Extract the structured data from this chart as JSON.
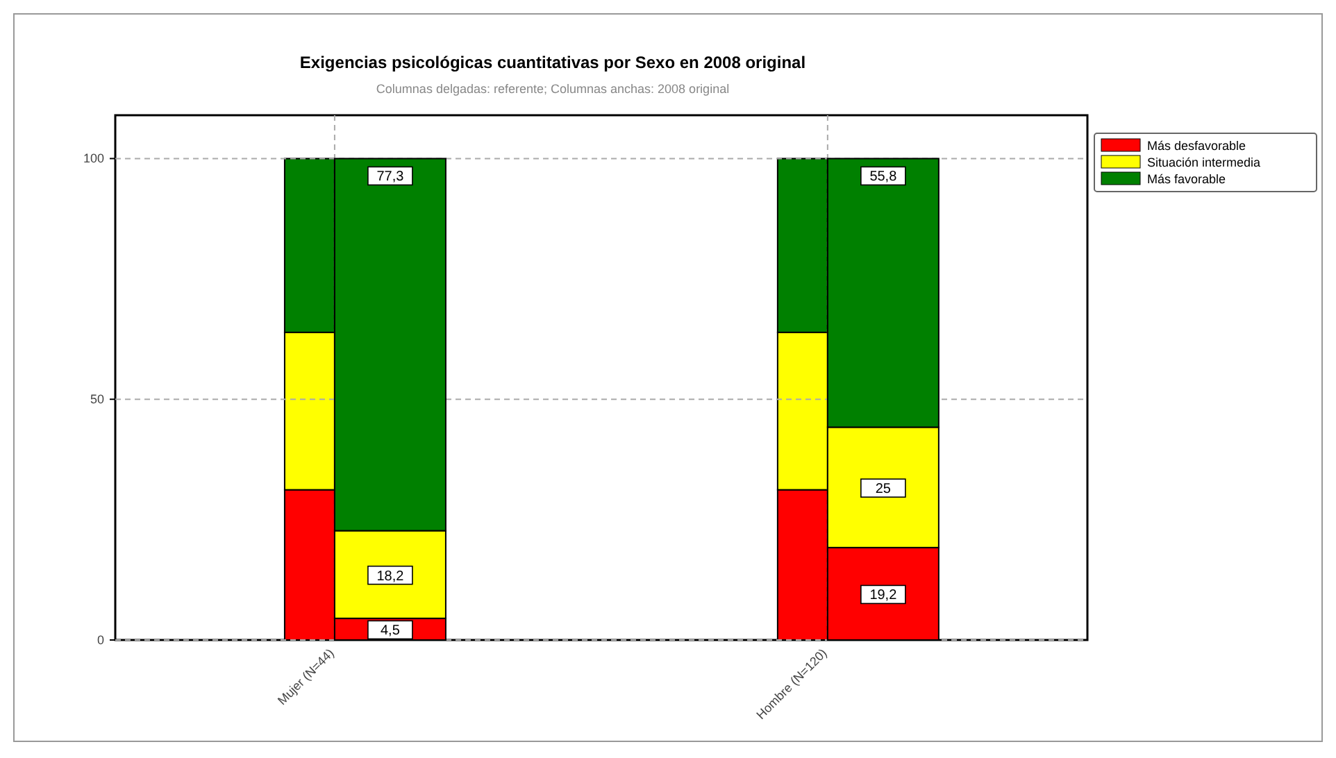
{
  "chart_data": [
    {
      "type": "bar",
      "title": "Exigencias psicológicas cuantitativas por Sexo en 2008 original",
      "subtitle": "Columnas delgadas: referente; Columnas anchas: 2008 original",
      "categories": [
        "Mujer (N=44)",
        "Hombre (N=120)"
      ],
      "stacked": true,
      "series": [
        {
          "name": "Más desfavorable",
          "color": "#ff0000",
          "values": [
            4.5,
            19.2
          ],
          "value_labels": [
            "4,5",
            "19,2"
          ]
        },
        {
          "name": "Situación intermedia",
          "color": "#ffff00",
          "values": [
            18.2,
            25
          ],
          "value_labels": [
            "18,2",
            "25"
          ]
        },
        {
          "name": "Más favorable",
          "color": "#008000",
          "values": [
            77.3,
            55.8
          ],
          "value_labels": [
            "77,3",
            "55,8"
          ]
        }
      ],
      "ylim": [
        0,
        109
      ],
      "yticks": [
        0,
        50,
        100
      ],
      "grid": true,
      "legend": "top right"
    },
    {
      "type": "bar",
      "categories": [
        null,
        null
      ],
      "stacked": true,
      "series": [
        {
          "color": "#ff0000",
          "values": [
            31.2,
            31.2
          ]
        },
        {
          "color": "#ffff00",
          "values": [
            32.7,
            32.7
          ]
        },
        {
          "color": "#008000",
          "values": [
            36.1,
            36.1
          ]
        }
      ],
      "ylim": [
        0,
        109
      ],
      "yticks": [
        0,
        50,
        100
      ],
      "tick_labels": false
    }
  ]
}
